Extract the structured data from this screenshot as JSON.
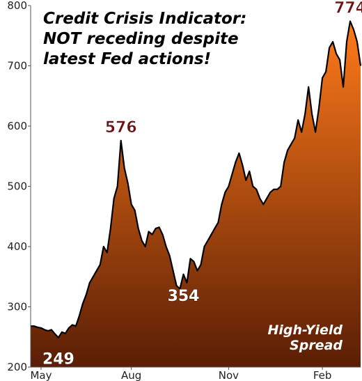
{
  "chart_data": {
    "type": "area",
    "title": [
      "Credit Crisis Indicator:",
      "NOT receding despite",
      "latest Fed actions!"
    ],
    "annotation": [
      "High-Yield",
      "Spread"
    ],
    "categories": [
      null,
      null,
      null,
      "May",
      null,
      null,
      null,
      null,
      null,
      null,
      null,
      null,
      null,
      null,
      null,
      null,
      null,
      null,
      null,
      null,
      null,
      null,
      null,
      null,
      null,
      null,
      null,
      null,
      null,
      "Aug",
      null,
      null,
      null,
      null,
      null,
      null,
      null,
      null,
      null,
      null,
      null,
      null,
      null,
      null,
      null,
      null,
      null,
      null,
      null,
      null,
      null,
      null,
      null,
      null,
      null,
      null,
      null,
      "Nov",
      null,
      null,
      null,
      null,
      null,
      null,
      null,
      null,
      null,
      null,
      null,
      null,
      null,
      null,
      null,
      null,
      null,
      null,
      null,
      null,
      null,
      null,
      null,
      null,
      null,
      null,
      "Feb",
      null,
      null,
      null,
      null,
      null,
      null,
      null,
      null,
      null,
      null,
      null
    ],
    "values": [
      268,
      268,
      266,
      265,
      262,
      260,
      262,
      255,
      249,
      258,
      256,
      265,
      270,
      268,
      285,
      305,
      320,
      340,
      350,
      360,
      370,
      400,
      390,
      430,
      480,
      500,
      576,
      530,
      505,
      470,
      460,
      430,
      410,
      400,
      425,
      420,
      430,
      432,
      420,
      400,
      385,
      360,
      335,
      330,
      354,
      340,
      380,
      375,
      360,
      370,
      400,
      410,
      420,
      430,
      440,
      470,
      490,
      500,
      520,
      540,
      555,
      535,
      510,
      525,
      500,
      495,
      480,
      470,
      480,
      490,
      495,
      495,
      500,
      540,
      560,
      570,
      580,
      610,
      590,
      620,
      665,
      620,
      590,
      630,
      680,
      690,
      730,
      740,
      720,
      710,
      665,
      740,
      774,
      760,
      740,
      700
    ],
    "value_labels": [
      null,
      null,
      null,
      null,
      null,
      null,
      null,
      null,
      "249",
      null,
      null,
      null,
      null,
      null,
      null,
      null,
      null,
      null,
      null,
      null,
      null,
      null,
      null,
      null,
      null,
      null,
      "576",
      null,
      null,
      null,
      null,
      null,
      null,
      null,
      null,
      null,
      null,
      null,
      null,
      null,
      null,
      null,
      null,
      null,
      "354",
      null,
      null,
      null,
      null,
      null,
      null,
      null,
      null,
      null,
      null,
      null,
      null,
      null,
      null,
      null,
      null,
      null,
      null,
      null,
      null,
      null,
      null,
      null,
      null,
      null,
      null,
      null,
      null,
      null,
      null,
      null,
      null,
      null,
      null,
      null,
      null,
      null,
      null,
      null,
      null,
      null,
      null,
      null,
      null,
      null,
      null,
      null,
      "774",
      null,
      null,
      null
    ],
    "ylim": [
      200,
      800
    ],
    "yticks": [
      200,
      300,
      400,
      500,
      600,
      700,
      800
    ],
    "color_top": "#ff7a1a",
    "color_bottom": "#5a1e05",
    "line_color": "#000000",
    "grid": false
  }
}
